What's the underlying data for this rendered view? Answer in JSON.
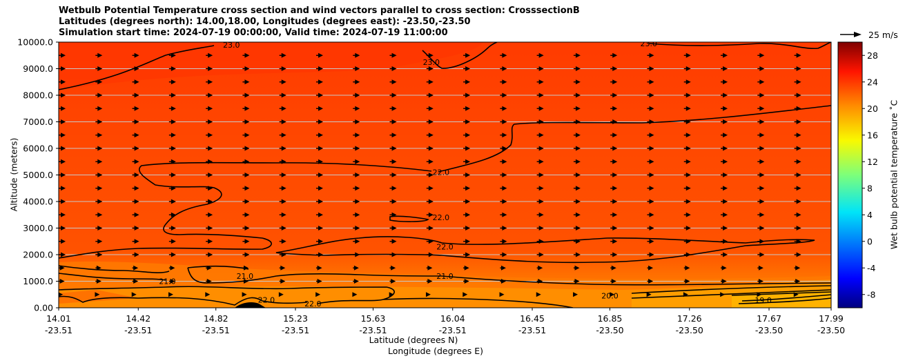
{
  "title": {
    "line1": "Wetbulb Potential Temperature cross section and wind vectors parallel to cross section: CrosssectionB",
    "line2": "Latitudes (degrees north): 14.00,18.00, Longitudes (degrees east): -23.50,-23.50",
    "line3": "Simulation start time: 2024-07-19 00:00:00, Valid time: 2024-07-19 11:00:00"
  },
  "chart_data": {
    "type": "heatmap",
    "subtype": "filled contour cross section with wind vectors",
    "ylabel": "Altitude (meters)",
    "xlabel_lat": "Latitude (degrees N)",
    "xlabel_lon": "Longitude (degrees E)",
    "ylim": [
      0,
      10000
    ],
    "xlim": [
      14.01,
      17.99
    ],
    "y_ticks": [
      "0.00",
      "1000.0",
      "2000.0",
      "3000.0",
      "4000.0",
      "5000.0",
      "6000.0",
      "7000.0",
      "8000.0",
      "9000.0",
      "10000.0"
    ],
    "x_ticks": [
      {
        "lat": "14.01",
        "lon": "-23.51",
        "x": 14.01
      },
      {
        "lat": "14.42",
        "lon": "-23.51",
        "x": 14.42
      },
      {
        "lat": "14.82",
        "lon": "-23.51",
        "x": 14.82
      },
      {
        "lat": "15.23",
        "lon": "-23.51",
        "x": 15.23
      },
      {
        "lat": "15.63",
        "lon": "-23.51",
        "x": 15.63
      },
      {
        "lat": "16.04",
        "lon": "-23.51",
        "x": 16.04
      },
      {
        "lat": "16.45",
        "lon": "-23.51",
        "x": 16.45
      },
      {
        "lat": "16.85",
        "lon": "-23.50",
        "x": 16.85
      },
      {
        "lat": "17.26",
        "lon": "-23.50",
        "x": 17.26
      },
      {
        "lat": "17.67",
        "lon": "-23.50",
        "x": 17.67
      },
      {
        "lat": "17.99",
        "lon": "-23.50",
        "x": 17.99
      }
    ],
    "colorbar": {
      "label": "Wet bulb potential temperature ˚C",
      "min": -10,
      "max": 30,
      "ticks": [
        "-8",
        "-4",
        "0",
        "4",
        "8",
        "12",
        "16",
        "20",
        "24",
        "28"
      ],
      "tick_values": [
        -8,
        -4,
        0,
        4,
        8,
        12,
        16,
        20,
        24,
        28
      ]
    },
    "vector_key": {
      "label": "25 m/s",
      "speed": 25
    },
    "contour_levels": [
      19.0,
      20.0,
      21.0,
      22.0,
      23.0
    ],
    "contour_labels": [
      {
        "text": "23.0",
        "x": 14.9,
        "y": 9900
      },
      {
        "text": "23.0",
        "x": 15.93,
        "y": 9250
      },
      {
        "text": "23.0",
        "x": 17.05,
        "y": 9950
      },
      {
        "text": "22.0",
        "x": 15.98,
        "y": 5100
      },
      {
        "text": "22.0",
        "x": 15.98,
        "y": 3400
      },
      {
        "text": "22.0",
        "x": 16.0,
        "y": 2300
      },
      {
        "text": "22.0",
        "x": 15.08,
        "y": 300
      },
      {
        "text": "22.0",
        "x": 15.32,
        "y": 150
      },
      {
        "text": "21.0",
        "x": 14.57,
        "y": 1000
      },
      {
        "text": "21.0",
        "x": 14.97,
        "y": 1200
      },
      {
        "text": "21.0",
        "x": 16.0,
        "y": 1200
      },
      {
        "text": "20.0",
        "x": 16.85,
        "y": 450
      },
      {
        "text": "19.0",
        "x": 17.64,
        "y": 280
      }
    ],
    "wind_grid": {
      "x_start": 14.01,
      "x_step": 0.1895,
      "columns": 22,
      "y_start": 0,
      "y_step": 500,
      "rows": 21,
      "typical_u_ms": 8,
      "note": "wind vectors point toward increasing latitude (northward) at all levels"
    }
  }
}
